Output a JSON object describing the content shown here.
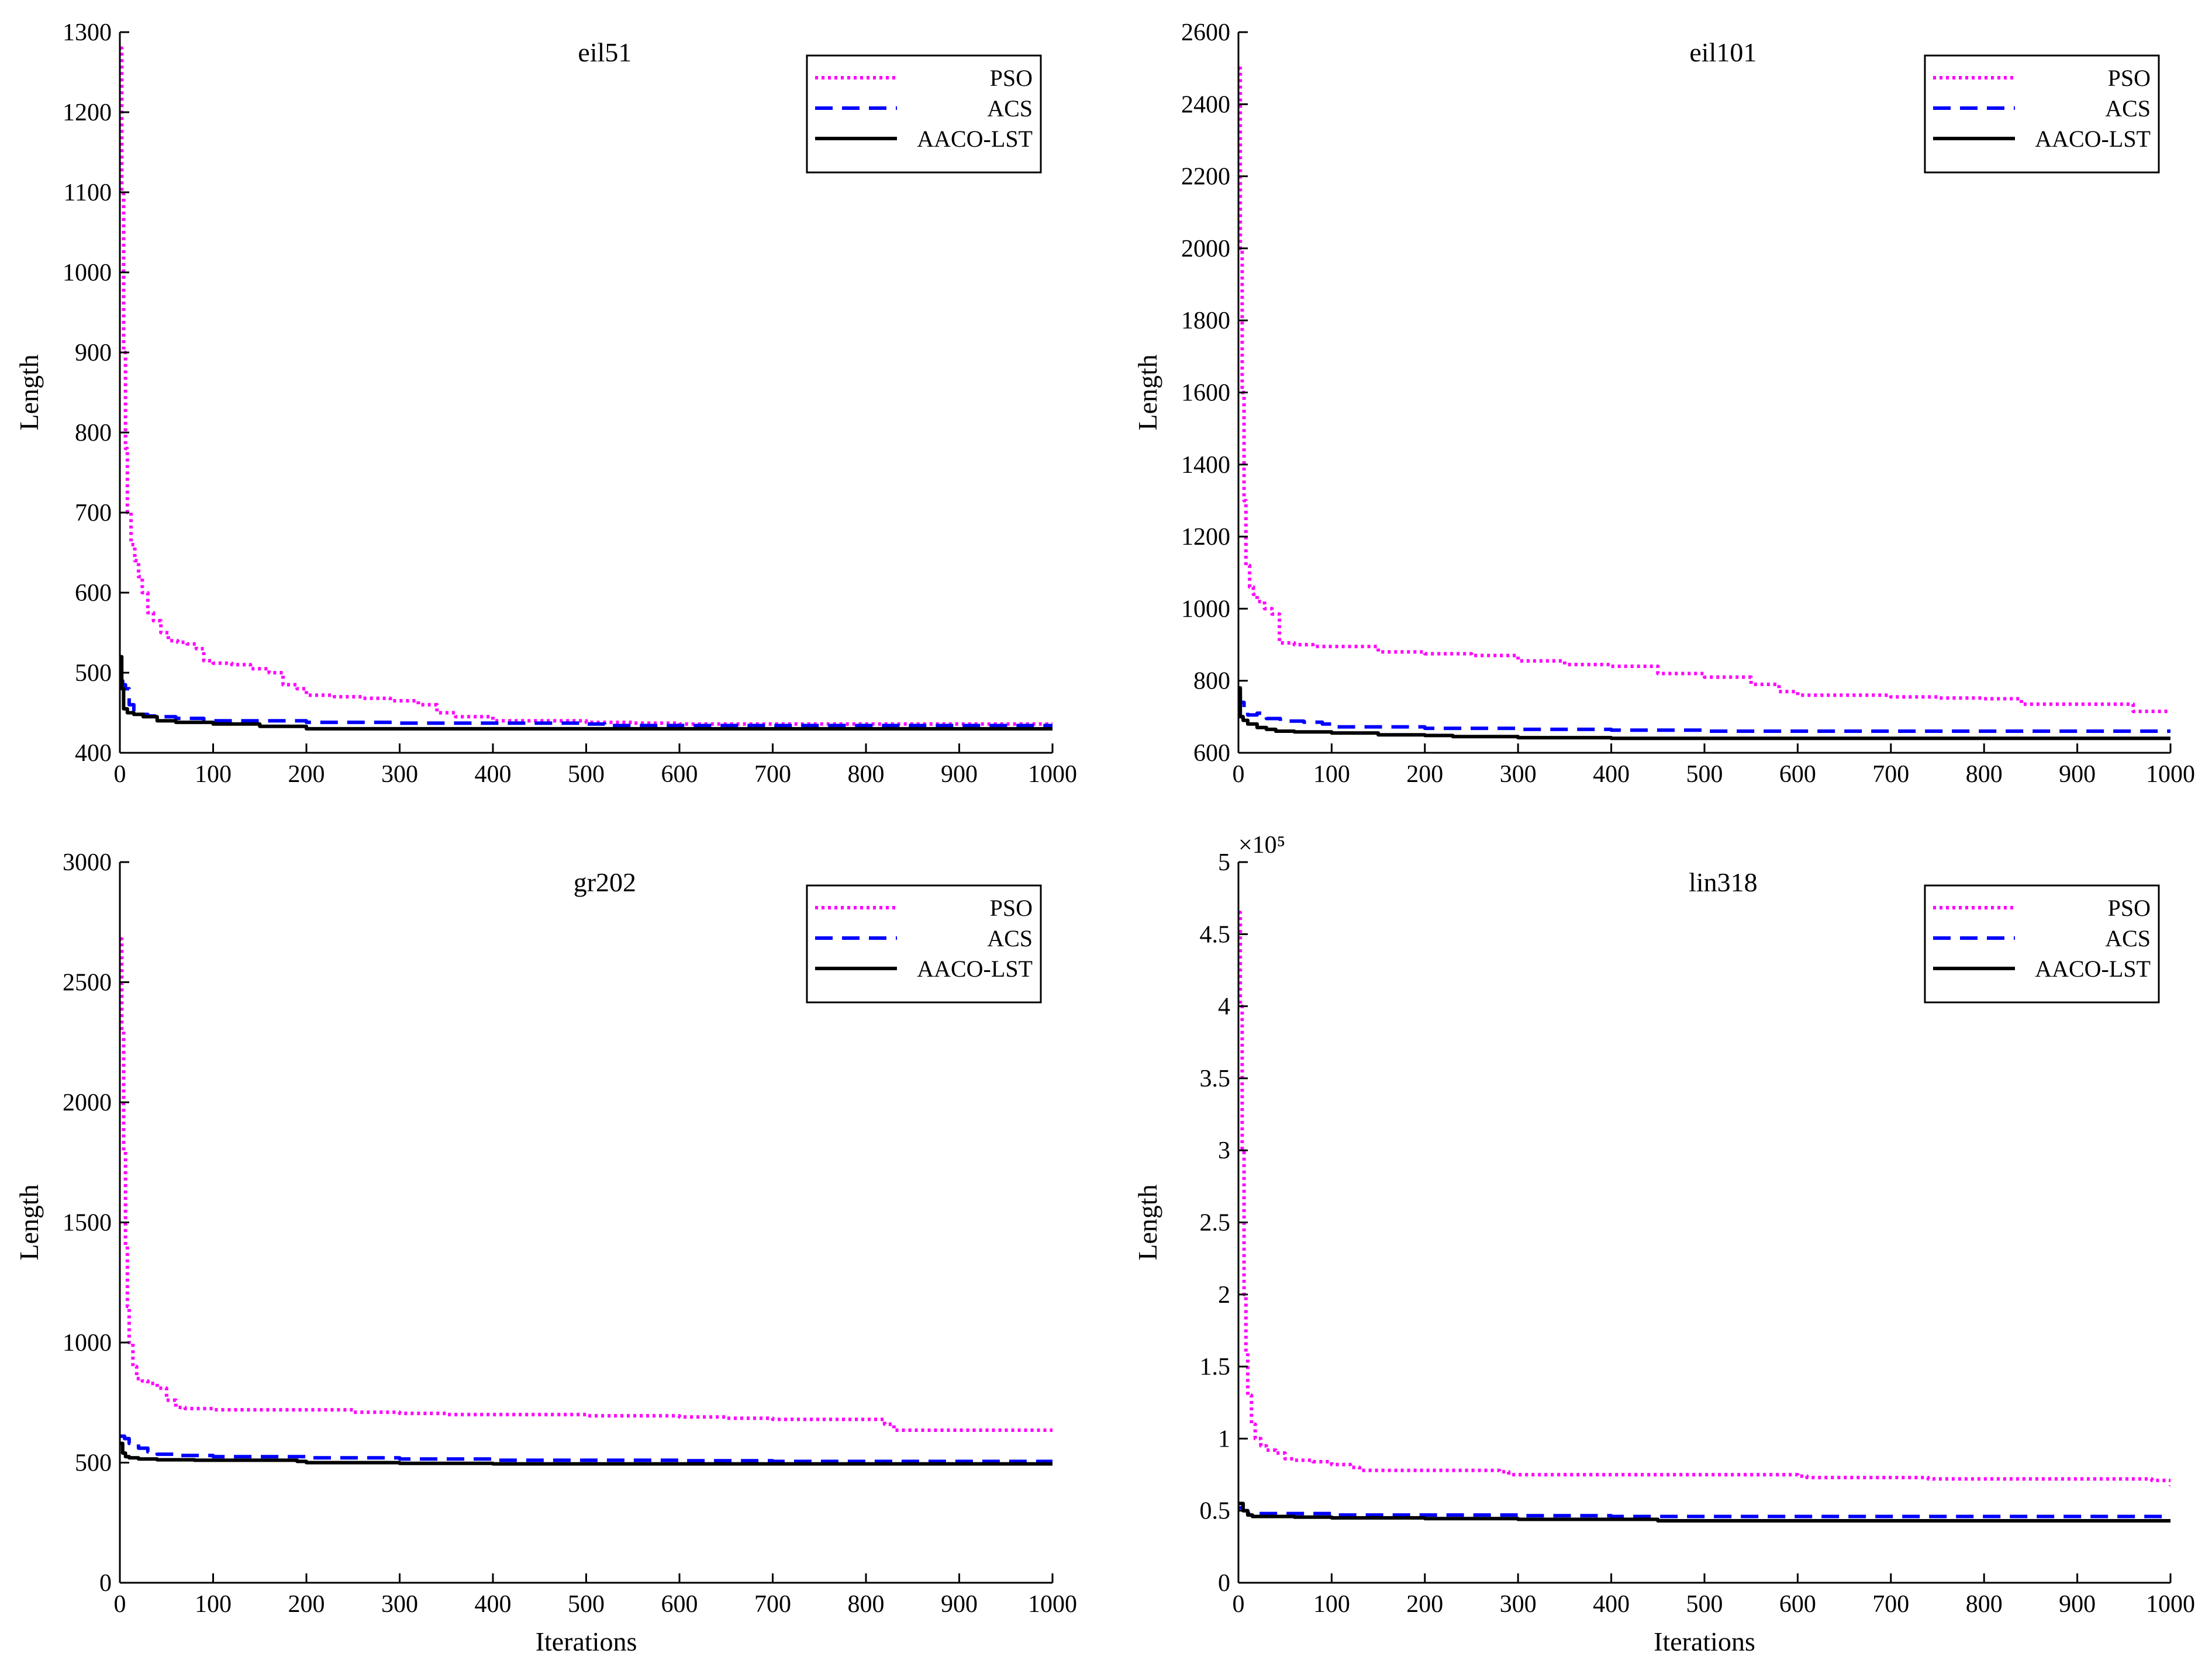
{
  "chart_data": [
    {
      "type": "line",
      "title": "eil51",
      "xlabel": "",
      "ylabel": "Length",
      "xlim": [
        0,
        1000
      ],
      "ylim": [
        400,
        1300
      ],
      "xticks": [
        "0",
        "100",
        "200",
        "300",
        "400",
        "500",
        "600",
        "700",
        "800",
        "900",
        "1000"
      ],
      "yticks": [
        "400",
        "500",
        "600",
        "700",
        "800",
        "900",
        "1000",
        "1100",
        "1200",
        "1300"
      ],
      "exponent_label": "",
      "legend_position": "top-right",
      "series": [
        {
          "name": "PSO",
          "style": "dotted",
          "color": "#ff00ff",
          "x": [
            0,
            2,
            4,
            6,
            8,
            12,
            16,
            20,
            24,
            30,
            36,
            44,
            52,
            62,
            72,
            82,
            90,
            100,
            120,
            140,
            160,
            175,
            190,
            200,
            230,
            260,
            290,
            320,
            340,
            360,
            400,
            450,
            500,
            550,
            600,
            700,
            800,
            900,
            1000
          ],
          "y": [
            1280,
            1100,
            900,
            780,
            700,
            660,
            640,
            620,
            600,
            575,
            565,
            550,
            540,
            538,
            536,
            530,
            515,
            512,
            510,
            505,
            500,
            485,
            480,
            472,
            470,
            468,
            465,
            460,
            450,
            445,
            440,
            440,
            438,
            437,
            436,
            436,
            436,
            436,
            436
          ]
        },
        {
          "name": "ACS",
          "style": "dashed",
          "color": "#0000ff",
          "x": [
            0,
            3,
            6,
            10,
            15,
            20,
            30,
            40,
            60,
            90,
            120,
            200,
            300,
            400,
            500,
            520,
            600,
            700,
            800,
            900,
            1000
          ],
          "y": [
            490,
            485,
            480,
            460,
            452,
            448,
            446,
            445,
            443,
            440,
            440,
            438,
            437,
            437,
            436,
            434,
            434,
            434,
            434,
            434,
            434
          ]
        },
        {
          "name": "AACO-LST",
          "style": "solid",
          "color": "#000000",
          "x": [
            0,
            2,
            4,
            8,
            15,
            25,
            40,
            60,
            100,
            150,
            200,
            300,
            400,
            500,
            600,
            700,
            800,
            900,
            1000
          ],
          "y": [
            520,
            480,
            455,
            450,
            448,
            445,
            440,
            438,
            436,
            433,
            430,
            430,
            430,
            430,
            430,
            430,
            430,
            430,
            430
          ]
        }
      ]
    },
    {
      "type": "line",
      "title": "eil101",
      "xlabel": "",
      "ylabel": "Length",
      "xlim": [
        0,
        1000
      ],
      "ylim": [
        600,
        2600
      ],
      "xticks": [
        "0",
        "100",
        "200",
        "300",
        "400",
        "500",
        "600",
        "700",
        "800",
        "900",
        "1000"
      ],
      "yticks": [
        "600",
        "800",
        "1000",
        "1200",
        "1400",
        "1600",
        "1800",
        "2000",
        "2200",
        "2400",
        "2600"
      ],
      "exponent_label": "",
      "legend_position": "top-right",
      "series": [
        {
          "name": "PSO",
          "style": "dotted",
          "color": "#ff00ff",
          "x": [
            0,
            2,
            4,
            6,
            8,
            12,
            16,
            20,
            28,
            36,
            44,
            60,
            80,
            100,
            150,
            200,
            250,
            300,
            350,
            400,
            450,
            500,
            550,
            580,
            600,
            650,
            700,
            750,
            800,
            840,
            900,
            950,
            960,
            1000
          ],
          "y": [
            2500,
            2000,
            1600,
            1300,
            1120,
            1060,
            1040,
            1020,
            1000,
            985,
            905,
            900,
            895,
            895,
            880,
            875,
            870,
            855,
            845,
            840,
            820,
            810,
            790,
            770,
            760,
            760,
            755,
            752,
            750,
            735,
            735,
            735,
            715,
            715
          ]
        },
        {
          "name": "ACS",
          "style": "dashed",
          "color": "#0000ff",
          "x": [
            0,
            2,
            6,
            10,
            15,
            20,
            30,
            45,
            70,
            90,
            100,
            200,
            300,
            400,
            500,
            600,
            700,
            800,
            900,
            1000
          ],
          "y": [
            760,
            740,
            720,
            705,
            705,
            710,
            695,
            688,
            685,
            680,
            672,
            668,
            665,
            663,
            660,
            660,
            660,
            660,
            660,
            660
          ]
        },
        {
          "name": "AACO-LST",
          "style": "solid",
          "color": "#000000",
          "x": [
            0,
            2,
            5,
            10,
            20,
            30,
            40,
            60,
            100,
            150,
            200,
            230,
            300,
            400,
            500,
            600,
            700,
            800,
            900,
            1000
          ],
          "y": [
            780,
            700,
            690,
            680,
            670,
            665,
            660,
            658,
            655,
            650,
            648,
            645,
            642,
            640,
            640,
            640,
            640,
            640,
            640,
            638
          ]
        }
      ]
    },
    {
      "type": "line",
      "title": "gr202",
      "xlabel": "Iterations",
      "ylabel": "Length",
      "xlim": [
        0,
        1000
      ],
      "ylim": [
        0,
        3000
      ],
      "xticks": [
        "0",
        "100",
        "200",
        "300",
        "400",
        "500",
        "600",
        "700",
        "800",
        "900",
        "1000"
      ],
      "yticks": [
        "0",
        "500",
        "1000",
        "1500",
        "2000",
        "2500",
        "3000"
      ],
      "exponent_label": "",
      "legend_position": "top-right",
      "series": [
        {
          "name": "PSO",
          "style": "dotted",
          "color": "#ff00ff",
          "x": [
            0,
            2,
            4,
            6,
            8,
            10,
            14,
            18,
            24,
            30,
            40,
            50,
            60,
            70,
            100,
            150,
            200,
            250,
            300,
            350,
            400,
            500,
            600,
            650,
            700,
            800,
            820,
            830,
            1000
          ],
          "y": [
            2680,
            2300,
            1800,
            1400,
            1150,
            1000,
            900,
            850,
            840,
            830,
            810,
            760,
            730,
            725,
            720,
            720,
            720,
            710,
            705,
            700,
            700,
            695,
            690,
            685,
            680,
            680,
            660,
            635,
            635
          ]
        },
        {
          "name": "ACS",
          "style": "dashed",
          "color": "#0000ff",
          "x": [
            0,
            5,
            10,
            20,
            30,
            40,
            60,
            100,
            200,
            300,
            400,
            500,
            600,
            700,
            800,
            900,
            1000
          ],
          "y": [
            610,
            600,
            580,
            560,
            545,
            535,
            530,
            525,
            520,
            515,
            510,
            510,
            508,
            505,
            505,
            505,
            505
          ]
        },
        {
          "name": "AACO-LST",
          "style": "solid",
          "color": "#000000",
          "x": [
            0,
            3,
            6,
            10,
            20,
            40,
            80,
            150,
            190,
            200,
            300,
            400,
            500,
            600,
            700,
            800,
            900,
            1000
          ],
          "y": [
            580,
            540,
            525,
            520,
            515,
            512,
            510,
            510,
            505,
            500,
            497,
            495,
            495,
            495,
            495,
            495,
            495,
            495
          ]
        }
      ]
    },
    {
      "type": "line",
      "title": "lin318",
      "xlabel": "Iterations",
      "ylabel": "Length",
      "xlim": [
        0,
        1000
      ],
      "ylim": [
        0,
        5
      ],
      "xticks": [
        "0",
        "100",
        "200",
        "300",
        "400",
        "500",
        "600",
        "700",
        "800",
        "900",
        "1000"
      ],
      "yticks": [
        "0",
        "0.5",
        "1",
        "1.5",
        "2",
        "2.5",
        "3",
        "3.5",
        "4",
        "4.5",
        "5"
      ],
      "exponent_label": "×10⁵",
      "legend_position": "top-right",
      "series": [
        {
          "name": "PSO",
          "style": "dotted",
          "color": "#ff00ff",
          "x": [
            0,
            2,
            4,
            6,
            8,
            10,
            14,
            18,
            24,
            30,
            40,
            50,
            60,
            80,
            100,
            120,
            130,
            200,
            280,
            290,
            400,
            500,
            600,
            610,
            700,
            740,
            800,
            900,
            980,
            1000
          ],
          "y": [
            4.65,
            4.0,
            3.0,
            2.0,
            1.6,
            1.3,
            1.1,
            1.0,
            0.95,
            0.92,
            0.9,
            0.86,
            0.85,
            0.84,
            0.82,
            0.8,
            0.78,
            0.78,
            0.77,
            0.75,
            0.75,
            0.75,
            0.74,
            0.73,
            0.73,
            0.72,
            0.72,
            0.72,
            0.71,
            0.67
          ]
        },
        {
          "name": "ACS",
          "style": "dashed",
          "color": "#0000ff",
          "x": [
            0,
            5,
            10,
            20,
            40,
            100,
            200,
            300,
            400,
            500,
            600,
            700,
            800,
            900,
            1000
          ],
          "y": [
            0.52,
            0.5,
            0.48,
            0.48,
            0.48,
            0.47,
            0.47,
            0.465,
            0.46,
            0.46,
            0.46,
            0.46,
            0.46,
            0.46,
            0.46
          ]
        },
        {
          "name": "AACO-LST",
          "style": "solid",
          "color": "#000000",
          "x": [
            0,
            5,
            10,
            15,
            30,
            60,
            100,
            150,
            200,
            300,
            400,
            450,
            500,
            600,
            700,
            800,
            900,
            1000
          ],
          "y": [
            0.55,
            0.5,
            0.47,
            0.46,
            0.46,
            0.455,
            0.45,
            0.45,
            0.445,
            0.44,
            0.44,
            0.43,
            0.43,
            0.43,
            0.43,
            0.43,
            0.43,
            0.43
          ]
        }
      ]
    }
  ]
}
